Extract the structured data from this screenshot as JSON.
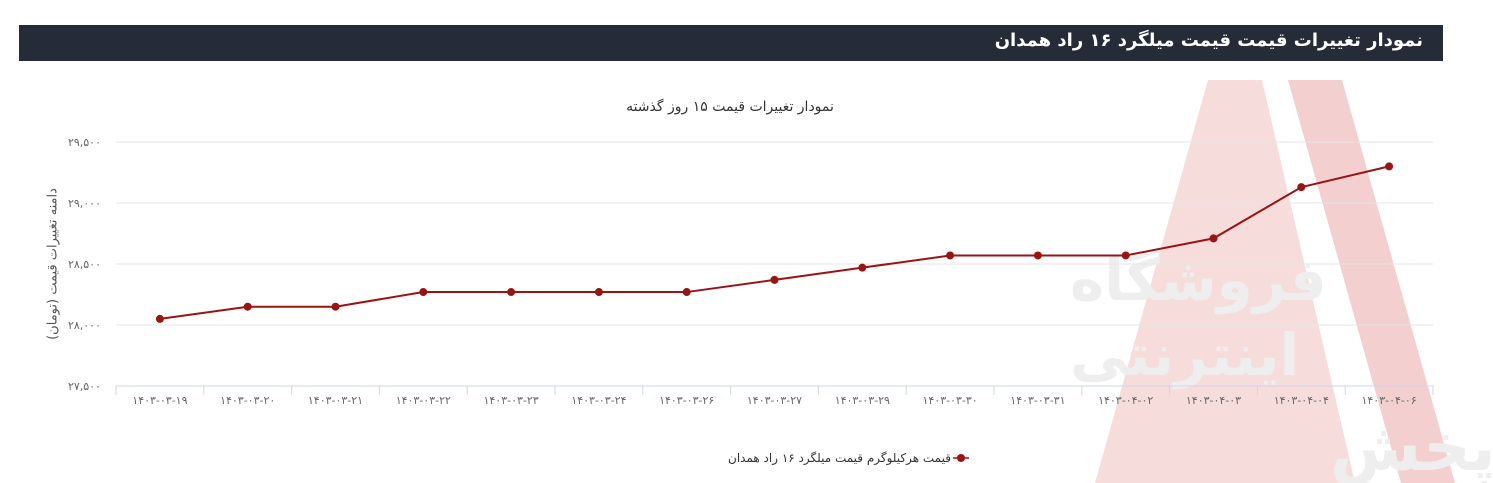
{
  "header": {
    "title": "نمودار تغییرات قیمت قیمت میلگرد ۱۶ راد همدان"
  },
  "watermark": {
    "line1": "فروشگاه",
    "line2": "اینترنتی",
    "line3": "آهـــن پخش"
  },
  "chart_data": {
    "type": "line",
    "title": "نمودار تغییرات قیمت ۱۵ روز گذشته",
    "xlabel": "",
    "ylabel": "دامنه تغییرات قیمت (تومان)",
    "categories": [
      "۱۴۰۳-۰۳-۱۹",
      "۱۴۰۳-۰۳-۲۰",
      "۱۴۰۳-۰۳-۲۱",
      "۱۴۰۳-۰۳-۲۲",
      "۱۴۰۳-۰۳-۲۳",
      "۱۴۰۳-۰۳-۲۴",
      "۱۴۰۳-۰۳-۲۶",
      "۱۴۰۳-۰۳-۲۷",
      "۱۴۰۳-۰۳-۲۹",
      "۱۴۰۳-۰۳-۳۰",
      "۱۴۰۳-۰۳-۳۱",
      "۱۴۰۳-۰۴-۰۲",
      "۱۴۰۳-۰۴-۰۳",
      "۱۴۰۳-۰۴-۰۴",
      "۱۴۰۳-۰۴-۰۶"
    ],
    "series": [
      {
        "name": "قیمت هرکیلوگرم قیمت میلگرد ۱۶ راد همدان",
        "color": "#9b1414",
        "values": [
          28050,
          28150,
          28150,
          28270,
          28270,
          28270,
          28270,
          28370,
          28470,
          28570,
          28570,
          28570,
          28710,
          29130,
          29300
        ]
      }
    ],
    "ylim": [
      27500,
      29500
    ],
    "yticks": [
      27500,
      28000,
      28500,
      29000,
      29500
    ],
    "ytick_labels": [
      "۲۷,۵۰۰",
      "۲۸,۰۰۰",
      "۲۸,۵۰۰",
      "۲۹,۰۰۰",
      "۲۹,۵۰۰"
    ],
    "grid": true,
    "legend_position": "bottom"
  }
}
